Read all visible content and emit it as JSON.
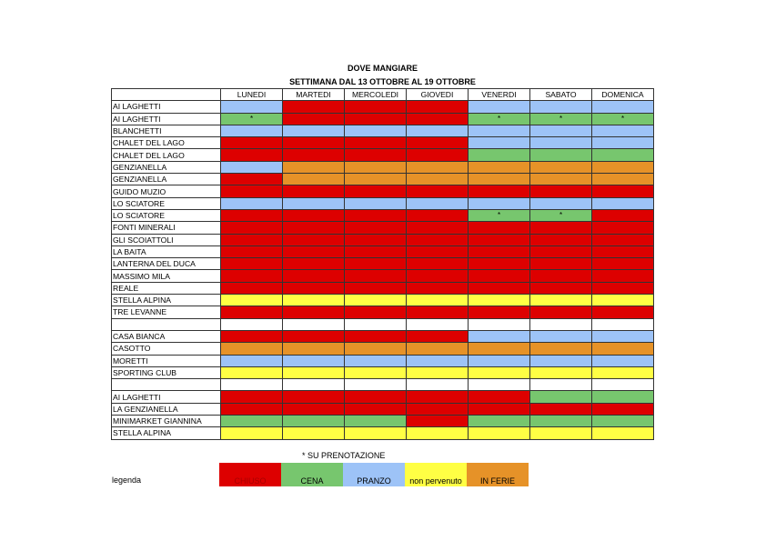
{
  "title": "DOVE MANGIARE",
  "subtitle": "SETTIMANA DAL 13 OTTOBRE AL 19 OTTOBRE",
  "colors": {
    "R": "#DD0000",
    "G": "#77C66E",
    "B": "#9DC3F7",
    "Y": "#FFFF44",
    "O": "#E69228",
    "W": "#FFFFFF"
  },
  "days": [
    "LUNEDI",
    "MARTEDI",
    "MERCOLEDI",
    "GIOVEDI",
    "VENERDI",
    "SABATO",
    "DOMENICA"
  ],
  "rows": [
    {
      "name": "AI LAGHETTI",
      "cells": [
        "B",
        "R",
        "R",
        "R",
        "B",
        "B",
        "B"
      ]
    },
    {
      "name": "AI LAGHETTI",
      "cells": [
        "G*",
        "R",
        "R",
        "R",
        "G*",
        "G*",
        "G*"
      ]
    },
    {
      "name": "BLANCHETTI",
      "cells": [
        "B",
        "B",
        "B",
        "B",
        "B",
        "B",
        "B"
      ]
    },
    {
      "name": "CHALET DEL LAGO",
      "cells": [
        "R",
        "R",
        "R",
        "R",
        "B",
        "B",
        "B"
      ]
    },
    {
      "name": "CHALET DEL LAGO",
      "cells": [
        "R",
        "R",
        "R",
        "R",
        "G",
        "G",
        "G"
      ]
    },
    {
      "name": "GENZIANELLA",
      "cells": [
        "B",
        "O",
        "O",
        "O",
        "O",
        "O",
        "O"
      ]
    },
    {
      "name": "GENZIANELLA",
      "cells": [
        "R",
        "O",
        "O",
        "O",
        "O",
        "O",
        "O"
      ]
    },
    {
      "name": "GUIDO MUZIO",
      "cells": [
        "R",
        "R",
        "R",
        "R",
        "R",
        "R",
        "R"
      ]
    },
    {
      "name": "LO SCIATORE",
      "cells": [
        "B",
        "B",
        "B",
        "B",
        "B",
        "B",
        "B"
      ]
    },
    {
      "name": "LO SCIATORE",
      "cells": [
        "R",
        "R",
        "R",
        "R",
        "G*",
        "G*",
        "R"
      ]
    },
    {
      "name": "FONTI MINERALI",
      "cells": [
        "R",
        "R",
        "R",
        "R",
        "R",
        "R",
        "R"
      ]
    },
    {
      "name": "GLI SCOIATTOLI",
      "cells": [
        "R",
        "R",
        "R",
        "R",
        "R",
        "R",
        "R"
      ]
    },
    {
      "name": "LA BAITA",
      "cells": [
        "R",
        "R",
        "R",
        "R",
        "R",
        "R",
        "R"
      ]
    },
    {
      "name": "LANTERNA DEL DUCA",
      "cells": [
        "R",
        "R",
        "R",
        "R",
        "R",
        "R",
        "R"
      ]
    },
    {
      "name": "MASSIMO MILA",
      "cells": [
        "R",
        "R",
        "R",
        "R",
        "R",
        "R",
        "R"
      ]
    },
    {
      "name": "REALE",
      "cells": [
        "R",
        "R",
        "R",
        "R",
        "R",
        "R",
        "R"
      ]
    },
    {
      "name": "STELLA ALPINA",
      "cells": [
        "Y",
        "Y",
        "Y",
        "Y",
        "Y",
        "Y",
        "Y"
      ]
    },
    {
      "name": "TRE LEVANNE",
      "cells": [
        "R",
        "R",
        "R",
        "R",
        "R",
        "R",
        "R"
      ]
    },
    {
      "name": "",
      "cells": [
        "W",
        "W",
        "W",
        "W",
        "W",
        "W",
        "W"
      ]
    },
    {
      "name": "CASA BIANCA",
      "cells": [
        "R",
        "R",
        "R",
        "R",
        "B",
        "B",
        "B"
      ]
    },
    {
      "name": "CASOTTO",
      "cells": [
        "O",
        "O",
        "O",
        "O",
        "O",
        "O",
        "O"
      ]
    },
    {
      "name": "MORETTI",
      "cells": [
        "B",
        "B",
        "B",
        "B",
        "B",
        "B",
        "B"
      ]
    },
    {
      "name": "SPORTING CLUB",
      "cells": [
        "Y",
        "Y",
        "Y",
        "Y",
        "Y",
        "Y",
        "Y"
      ]
    },
    {
      "name": "",
      "cells": [
        "W",
        "W",
        "W",
        "W",
        "W",
        "W",
        "W"
      ]
    },
    {
      "name": "AI LAGHETTI",
      "cells": [
        "R",
        "R",
        "R",
        "R",
        "R",
        "G",
        "G"
      ]
    },
    {
      "name": "LA GENZIANELLA",
      "cells": [
        "R",
        "R",
        "R",
        "R",
        "R",
        "R",
        "R"
      ]
    },
    {
      "name": "MINIMARKET GIANNINA",
      "cells": [
        "G",
        "G",
        "G",
        "R",
        "G",
        "G",
        "G"
      ]
    },
    {
      "name": "STELLA ALPINA",
      "cells": [
        "Y",
        "Y",
        "Y",
        "Y",
        "Y",
        "Y",
        "Y"
      ]
    }
  ],
  "note": "* SU PRENOTAZIONE",
  "legend_label": "legenda",
  "legend": [
    {
      "code": "R",
      "label": "CHIUSO"
    },
    {
      "code": "G",
      "label": "CENA"
    },
    {
      "code": "B",
      "label": "PRANZO"
    },
    {
      "code": "Y",
      "label": "non pervenuto"
    },
    {
      "code": "O",
      "label": "IN FERIE"
    }
  ]
}
